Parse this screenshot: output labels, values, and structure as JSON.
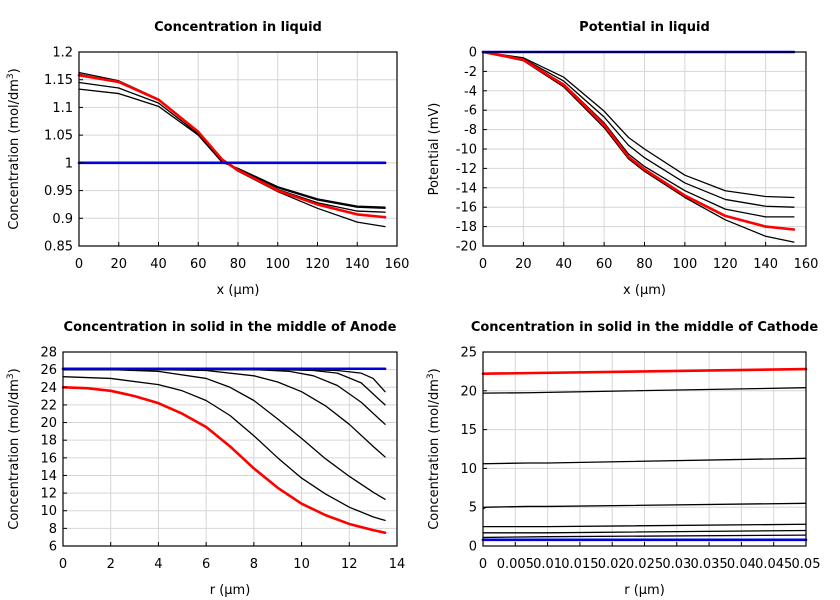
{
  "chart_data": [
    {
      "type": "line",
      "title": "Concentration in liquid",
      "xlabel": "x (µm)",
      "ylabel": [
        "Concentration (mol/dm",
        "3",
        ")"
      ],
      "xlim": [
        0,
        160
      ],
      "ylim": [
        0.85,
        1.2
      ],
      "xticks": [
        0,
        20,
        40,
        60,
        80,
        100,
        120,
        140,
        160
      ],
      "yticks": [
        0.85,
        0.9,
        0.95,
        1,
        1.05,
        1.1,
        1.15,
        1.2
      ],
      "xtick_labels": [
        "0",
        "20",
        "40",
        "60",
        "80",
        "100",
        "120",
        "140",
        "160"
      ],
      "ytick_labels": [
        "0.85",
        "0.9",
        "0.95",
        "1",
        "1.05",
        "1.1",
        "1.15",
        "1.2"
      ],
      "grid": true,
      "series": [
        {
          "name": "c-1",
          "color": "#000000",
          "width": 1.3,
          "x": [
            0,
            20,
            40,
            60,
            72,
            80,
            100,
            120,
            140,
            154
          ],
          "y": [
            1.163,
            1.148,
            1.115,
            1.055,
            1.005,
            0.985,
            0.948,
            0.918,
            0.893,
            0.885
          ]
        },
        {
          "name": "c-2",
          "color": "#000000",
          "width": 1.3,
          "x": [
            0,
            20,
            40,
            60,
            72,
            80,
            100,
            120,
            140,
            154
          ],
          "y": [
            1.16,
            1.145,
            1.113,
            1.055,
            1.005,
            0.987,
            0.952,
            0.928,
            0.913,
            0.911
          ]
        },
        {
          "name": "c-3",
          "color": "#000000",
          "width": 1.3,
          "x": [
            0,
            20,
            40,
            60,
            72,
            80,
            100,
            120,
            140,
            154
          ],
          "y": [
            1.145,
            1.135,
            1.108,
            1.052,
            1.003,
            0.989,
            0.955,
            0.933,
            0.92,
            0.918
          ]
        },
        {
          "name": "c-4",
          "color": "#000000",
          "width": 1.3,
          "x": [
            0,
            20,
            40,
            60,
            72,
            80,
            100,
            120,
            140,
            154
          ],
          "y": [
            1.133,
            1.125,
            1.102,
            1.05,
            1.001,
            0.99,
            0.957,
            0.935,
            0.922,
            0.92
          ]
        },
        {
          "name": "c-red",
          "color": "#ff0000",
          "width": 2.6,
          "x": [
            0,
            20,
            40,
            60,
            72,
            80,
            100,
            120,
            140,
            154
          ],
          "y": [
            1.158,
            1.146,
            1.114,
            1.056,
            1.006,
            0.987,
            0.95,
            0.925,
            0.907,
            0.902
          ]
        },
        {
          "name": "c-blue",
          "color": "#0000dd",
          "width": 2.6,
          "x": [
            0,
            154
          ],
          "y": [
            1.0,
            1.0
          ]
        }
      ]
    },
    {
      "type": "line",
      "title": "Potential in liquid",
      "xlabel": "x (µm)",
      "ylabel": [
        "Potential (mV)"
      ],
      "xlim": [
        0,
        160
      ],
      "ylim": [
        -20,
        0
      ],
      "xticks": [
        0,
        20,
        40,
        60,
        80,
        100,
        120,
        140,
        160
      ],
      "yticks": [
        -20,
        -18,
        -16,
        -14,
        -12,
        -10,
        -8,
        -6,
        -4,
        -2,
        0
      ],
      "xtick_labels": [
        "0",
        "20",
        "40",
        "60",
        "80",
        "100",
        "120",
        "140",
        "160"
      ],
      "ytick_labels": [
        "-20",
        "-18",
        "-16",
        "-14",
        "-12",
        "-10",
        "-8",
        "-6",
        "-4",
        "-2",
        "0"
      ],
      "grid": true,
      "series": [
        {
          "name": "p-1",
          "color": "#000000",
          "width": 1.3,
          "x": [
            0,
            20,
            40,
            60,
            72,
            80,
            100,
            120,
            140,
            154
          ],
          "y": [
            0,
            -0.9,
            -3.6,
            -7.8,
            -11.0,
            -12.3,
            -15.0,
            -17.3,
            -19.0,
            -19.6
          ]
        },
        {
          "name": "p-2",
          "color": "#000000",
          "width": 1.3,
          "x": [
            0,
            20,
            40,
            60,
            72,
            80,
            100,
            120,
            140,
            154
          ],
          "y": [
            0,
            -0.8,
            -3.3,
            -7.3,
            -10.5,
            -11.8,
            -14.3,
            -16.2,
            -17.0,
            -17.0
          ]
        },
        {
          "name": "p-3",
          "color": "#000000",
          "width": 1.3,
          "x": [
            0,
            20,
            40,
            60,
            72,
            80,
            100,
            120,
            140,
            154
          ],
          "y": [
            0,
            -0.7,
            -3.0,
            -6.7,
            -9.6,
            -10.9,
            -13.5,
            -15.2,
            -15.9,
            -16.0
          ]
        },
        {
          "name": "p-4",
          "color": "#000000",
          "width": 1.3,
          "x": [
            0,
            20,
            40,
            60,
            72,
            80,
            100,
            120,
            140,
            154
          ],
          "y": [
            0,
            -0.6,
            -2.6,
            -6.1,
            -8.8,
            -10.0,
            -12.7,
            -14.3,
            -14.9,
            -15.0
          ]
        },
        {
          "name": "p-red",
          "color": "#ff0000",
          "width": 2.6,
          "x": [
            0,
            20,
            40,
            60,
            72,
            80,
            100,
            120,
            140,
            154
          ],
          "y": [
            0,
            -0.8,
            -3.4,
            -7.5,
            -10.8,
            -12.1,
            -14.8,
            -16.9,
            -18.0,
            -18.3
          ]
        },
        {
          "name": "p-blue",
          "color": "#0000dd",
          "width": 2.6,
          "x": [
            0,
            154
          ],
          "y": [
            0,
            0
          ]
        }
      ]
    },
    {
      "type": "line",
      "title": "Concentration in solid in the middle of Anode",
      "xlabel": "r (µm)",
      "ylabel": [
        "Concentration (mol/dm",
        "3",
        ")"
      ],
      "xlim": [
        0,
        14
      ],
      "ylim": [
        6,
        28
      ],
      "xticks": [
        0,
        2,
        4,
        6,
        8,
        10,
        12,
        14
      ],
      "yticks": [
        6,
        8,
        10,
        12,
        14,
        16,
        18,
        20,
        22,
        24,
        26,
        28
      ],
      "xtick_labels": [
        "0",
        "2",
        "4",
        "6",
        "8",
        "10",
        "12",
        "14"
      ],
      "ytick_labels": [
        "6",
        "8",
        "10",
        "12",
        "14",
        "16",
        "18",
        "20",
        "22",
        "24",
        "26",
        "28"
      ],
      "grid": true,
      "series": [
        {
          "name": "a-1",
          "color": "#000000",
          "width": 1.3,
          "x": [
            0,
            10,
            11.5,
            12.5,
            13.0,
            13.5
          ],
          "y": [
            26.0,
            26.0,
            25.9,
            25.6,
            25.0,
            23.5
          ]
        },
        {
          "name": "a-2",
          "color": "#000000",
          "width": 1.3,
          "x": [
            0,
            9,
            10.5,
            11.5,
            12.5,
            13.5
          ],
          "y": [
            26.0,
            26.0,
            25.9,
            25.6,
            24.5,
            22.0
          ]
        },
        {
          "name": "a-3",
          "color": "#000000",
          "width": 1.3,
          "x": [
            0,
            8,
            9.5,
            10.5,
            11.5,
            12.5,
            13.5
          ],
          "y": [
            26.0,
            26.0,
            25.8,
            25.3,
            24.2,
            22.3,
            19.8
          ]
        },
        {
          "name": "a-4",
          "color": "#000000",
          "width": 1.3,
          "x": [
            0,
            4,
            6,
            8,
            9,
            10,
            11,
            12,
            13,
            13.5
          ],
          "y": [
            26.0,
            26.0,
            25.9,
            25.3,
            24.6,
            23.5,
            21.9,
            19.8,
            17.3,
            16.1
          ]
        },
        {
          "name": "a-5",
          "color": "#000000",
          "width": 1.3,
          "x": [
            0,
            2,
            4,
            6,
            7,
            8,
            9,
            10,
            11,
            12,
            13,
            13.5
          ],
          "y": [
            26.0,
            26.0,
            25.8,
            25.0,
            24.0,
            22.5,
            20.4,
            18.2,
            15.9,
            13.9,
            12.1,
            11.3
          ]
        },
        {
          "name": "a-6",
          "color": "#000000",
          "width": 1.3,
          "x": [
            0,
            2,
            4,
            5,
            6,
            7,
            8,
            9,
            10,
            11,
            12,
            13,
            13.5
          ],
          "y": [
            25.2,
            25.0,
            24.3,
            23.6,
            22.5,
            20.8,
            18.5,
            16.0,
            13.7,
            11.9,
            10.4,
            9.3,
            8.9
          ]
        },
        {
          "name": "a-red",
          "color": "#ff0000",
          "width": 2.6,
          "x": [
            0,
            1,
            2,
            3,
            4,
            5,
            6,
            7,
            8,
            9,
            10,
            11,
            12,
            13,
            13.5
          ],
          "y": [
            24.0,
            23.9,
            23.6,
            23.0,
            22.2,
            21.0,
            19.5,
            17.3,
            14.8,
            12.6,
            10.8,
            9.5,
            8.5,
            7.8,
            7.5
          ]
        },
        {
          "name": "a-blue",
          "color": "#0000dd",
          "width": 2.6,
          "x": [
            0,
            13.5
          ],
          "y": [
            26.1,
            26.1
          ]
        }
      ]
    },
    {
      "type": "line",
      "title": "Concentration in solid in the middle of Cathode",
      "xlabel": "r (µm)",
      "ylabel": [
        "Concentration (mol/dm",
        "3",
        ")"
      ],
      "xlim": [
        0,
        0.05
      ],
      "ylim": [
        0,
        25
      ],
      "xticks": [
        0,
        0.005,
        0.01,
        0.015,
        0.02,
        0.025,
        0.03,
        0.035,
        0.04,
        0.045,
        0.05
      ],
      "yticks": [
        0,
        5,
        10,
        15,
        20,
        25
      ],
      "xtick_labels": [
        "0",
        "0.005",
        "0.01",
        "0.015",
        "0.02",
        "0.025",
        "0.03",
        "0.035",
        "0.04",
        "0.045",
        "0.05"
      ],
      "ytick_labels": [
        "0",
        "5",
        "10",
        "15",
        "20",
        "25"
      ],
      "grid": true,
      "series": [
        {
          "name": "k-red",
          "color": "#ff0000",
          "width": 2.6,
          "x": [
            0,
            0.05
          ],
          "y": [
            22.2,
            22.8
          ]
        },
        {
          "name": "k-1",
          "color": "#000000",
          "width": 1.3,
          "x": [
            0,
            0.007,
            0.01,
            0.05
          ],
          "y": [
            19.7,
            19.75,
            19.8,
            20.4
          ]
        },
        {
          "name": "k-2",
          "color": "#000000",
          "width": 1.3,
          "x": [
            0,
            0.007,
            0.01,
            0.05
          ],
          "y": [
            10.6,
            10.7,
            10.7,
            11.3
          ]
        },
        {
          "name": "k-3",
          "color": "#000000",
          "width": 1.3,
          "x": [
            0,
            0.0005,
            0.007,
            0.01,
            0.05
          ],
          "y": [
            4.8,
            5.0,
            5.1,
            5.1,
            5.5
          ]
        },
        {
          "name": "k-4",
          "color": "#000000",
          "width": 1.3,
          "x": [
            0,
            0.01,
            0.05
          ],
          "y": [
            2.5,
            2.5,
            2.8
          ]
        },
        {
          "name": "k-5",
          "color": "#000000",
          "width": 1.3,
          "x": [
            0,
            0.01,
            0.05
          ],
          "y": [
            1.7,
            1.7,
            2.0
          ]
        },
        {
          "name": "k-6",
          "color": "#000000",
          "width": 1.3,
          "x": [
            0,
            0.01,
            0.05
          ],
          "y": [
            1.1,
            1.2,
            1.4
          ]
        },
        {
          "name": "k-blue",
          "color": "#0000dd",
          "width": 2.6,
          "x": [
            0,
            0.05
          ],
          "y": [
            0.8,
            0.8
          ]
        }
      ]
    }
  ]
}
